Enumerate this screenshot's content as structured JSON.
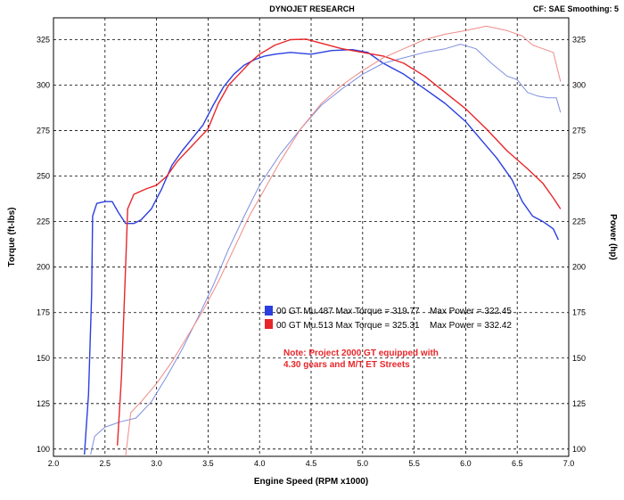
{
  "header": {
    "center": "DYNOJET RESEARCH",
    "right": "CF: SAE  Smoothing: 5"
  },
  "chart_data": {
    "type": "line",
    "xlabel": "Engine Speed (RPM x1000)",
    "ylabel_left": "Torque (ft-lbs)",
    "ylabel_right": "Power (hp)",
    "xlim": [
      2.0,
      7.0
    ],
    "ylim": [
      96,
      337
    ],
    "grid": true,
    "x_ticks": [
      "2.0",
      "2.5",
      "3.0",
      "3.5",
      "4.0",
      "4.5",
      "5.0",
      "5.5",
      "6.0",
      "6.5",
      "7.0"
    ],
    "y_ticks_left": [
      "100",
      "125",
      "150",
      "175",
      "200",
      "225",
      "250",
      "275",
      "300",
      "325"
    ],
    "y_ticks_right": [
      "100",
      "125",
      "150",
      "175",
      "200",
      "225",
      "250",
      "275",
      "300",
      "325"
    ],
    "legend": {
      "position": "center",
      "entries": [
        {
          "label": "00 GT Mu.487 Max Torque = 319.77",
          "power_label": "Max Power = 322.45",
          "color": "#2b3fe0"
        },
        {
          "label": "00 GT Mu.513 Max Torque = 325.31",
          "power_label": "Max Power = 332.42",
          "color": "#e8262a"
        }
      ]
    },
    "note": {
      "lines": [
        "Note: Project 2000 GT equipped with",
        "4.30 gears and M/T ET Streets"
      ],
      "color": "#e8262a"
    },
    "series": [
      {
        "kind": "torque",
        "color": "#2b3fe0",
        "points": [
          [
            2.3,
            97
          ],
          [
            2.34,
            130
          ],
          [
            2.37,
            185
          ],
          [
            2.38,
            228
          ],
          [
            2.42,
            235
          ],
          [
            2.5,
            236
          ],
          [
            2.57,
            236
          ],
          [
            2.63,
            230
          ],
          [
            2.7,
            224
          ],
          [
            2.78,
            224
          ],
          [
            2.85,
            226
          ],
          [
            2.95,
            232
          ],
          [
            3.05,
            243
          ],
          [
            3.15,
            256
          ],
          [
            3.25,
            264
          ],
          [
            3.35,
            271
          ],
          [
            3.45,
            278
          ],
          [
            3.55,
            289
          ],
          [
            3.65,
            299
          ],
          [
            3.75,
            306
          ],
          [
            3.85,
            311
          ],
          [
            3.95,
            314
          ],
          [
            4.05,
            316
          ],
          [
            4.15,
            317
          ],
          [
            4.3,
            318
          ],
          [
            4.5,
            317
          ],
          [
            4.7,
            319
          ],
          [
            4.9,
            319.5
          ],
          [
            5.05,
            318
          ],
          [
            5.2,
            312
          ],
          [
            5.4,
            306
          ],
          [
            5.6,
            298
          ],
          [
            5.8,
            290
          ],
          [
            6.0,
            280
          ],
          [
            6.15,
            270
          ],
          [
            6.3,
            260
          ],
          [
            6.45,
            248
          ],
          [
            6.55,
            236
          ],
          [
            6.65,
            228
          ],
          [
            6.75,
            225
          ],
          [
            6.85,
            221
          ],
          [
            6.9,
            215
          ]
        ]
      },
      {
        "kind": "power",
        "color": "#7f8fe0",
        "points": [
          [
            2.36,
            97
          ],
          [
            2.4,
            107
          ],
          [
            2.5,
            112
          ],
          [
            2.65,
            115
          ],
          [
            2.8,
            117
          ],
          [
            2.95,
            126
          ],
          [
            3.1,
            140
          ],
          [
            3.25,
            155
          ],
          [
            3.4,
            172
          ],
          [
            3.55,
            190
          ],
          [
            3.7,
            210
          ],
          [
            3.85,
            228
          ],
          [
            4.0,
            245
          ],
          [
            4.2,
            262
          ],
          [
            4.4,
            276
          ],
          [
            4.6,
            289
          ],
          [
            4.8,
            298
          ],
          [
            5.0,
            306
          ],
          [
            5.2,
            312
          ],
          [
            5.4,
            315
          ],
          [
            5.6,
            318
          ],
          [
            5.8,
            320
          ],
          [
            5.95,
            322.5
          ],
          [
            6.1,
            320
          ],
          [
            6.25,
            312
          ],
          [
            6.4,
            305
          ],
          [
            6.5,
            303
          ],
          [
            6.6,
            296
          ],
          [
            6.7,
            294
          ],
          [
            6.8,
            293
          ],
          [
            6.88,
            293
          ],
          [
            6.92,
            285
          ]
        ]
      },
      {
        "kind": "torque",
        "color": "#e8262a",
        "points": [
          [
            2.62,
            102
          ],
          [
            2.66,
            140
          ],
          [
            2.7,
            200
          ],
          [
            2.72,
            232
          ],
          [
            2.78,
            240
          ],
          [
            2.9,
            243
          ],
          [
            3.0,
            245
          ],
          [
            3.1,
            250
          ],
          [
            3.2,
            258
          ],
          [
            3.3,
            264
          ],
          [
            3.4,
            270
          ],
          [
            3.5,
            276
          ],
          [
            3.6,
            290
          ],
          [
            3.7,
            300
          ],
          [
            3.8,
            306
          ],
          [
            3.9,
            312
          ],
          [
            4.0,
            317
          ],
          [
            4.15,
            322
          ],
          [
            4.3,
            325
          ],
          [
            4.45,
            325.3
          ],
          [
            4.6,
            323
          ],
          [
            4.8,
            320
          ],
          [
            5.0,
            318
          ],
          [
            5.2,
            316
          ],
          [
            5.4,
            312
          ],
          [
            5.6,
            305
          ],
          [
            5.8,
            296
          ],
          [
            6.0,
            287
          ],
          [
            6.2,
            276
          ],
          [
            6.4,
            264
          ],
          [
            6.6,
            254
          ],
          [
            6.75,
            246
          ],
          [
            6.85,
            238
          ],
          [
            6.92,
            232
          ]
        ]
      },
      {
        "kind": "power",
        "color": "#ee8b86",
        "points": [
          [
            2.7,
            96
          ],
          [
            2.75,
            120
          ],
          [
            2.85,
            126
          ],
          [
            3.0,
            136
          ],
          [
            3.15,
            148
          ],
          [
            3.3,
            162
          ],
          [
            3.45,
            176
          ],
          [
            3.6,
            192
          ],
          [
            3.75,
            210
          ],
          [
            3.9,
            228
          ],
          [
            4.05,
            243
          ],
          [
            4.2,
            258
          ],
          [
            4.4,
            276
          ],
          [
            4.6,
            290
          ],
          [
            4.8,
            300
          ],
          [
            5.0,
            308
          ],
          [
            5.2,
            315
          ],
          [
            5.4,
            320
          ],
          [
            5.6,
            325
          ],
          [
            5.8,
            328
          ],
          [
            6.0,
            330
          ],
          [
            6.2,
            332.4
          ],
          [
            6.4,
            330
          ],
          [
            6.55,
            327
          ],
          [
            6.65,
            322
          ],
          [
            6.75,
            320
          ],
          [
            6.85,
            318
          ],
          [
            6.92,
            302
          ]
        ]
      }
    ]
  }
}
